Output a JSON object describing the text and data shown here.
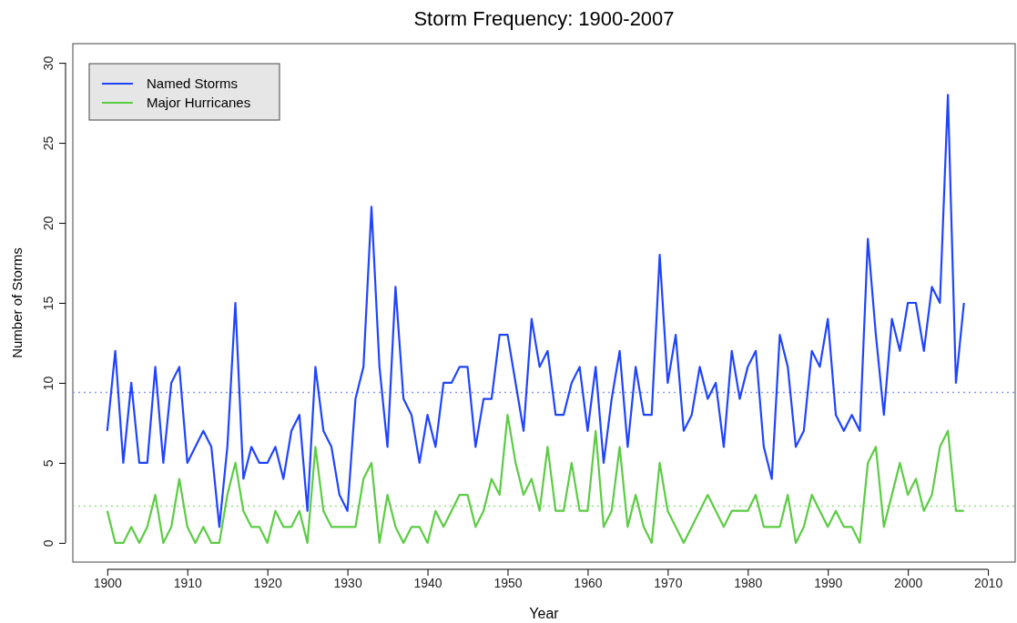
{
  "chart_data": {
    "type": "line",
    "title": "Storm Frequency: 1900-2007",
    "xlabel": "Year",
    "ylabel": "Number of Storms",
    "x": [
      1900,
      1901,
      1902,
      1903,
      1904,
      1905,
      1906,
      1907,
      1908,
      1909,
      1910,
      1911,
      1912,
      1913,
      1914,
      1915,
      1916,
      1917,
      1918,
      1919,
      1920,
      1921,
      1922,
      1923,
      1924,
      1925,
      1926,
      1927,
      1928,
      1929,
      1930,
      1931,
      1932,
      1933,
      1934,
      1935,
      1936,
      1937,
      1938,
      1939,
      1940,
      1941,
      1942,
      1943,
      1944,
      1945,
      1946,
      1947,
      1948,
      1949,
      1950,
      1951,
      1952,
      1953,
      1954,
      1955,
      1956,
      1957,
      1958,
      1959,
      1960,
      1961,
      1962,
      1963,
      1964,
      1965,
      1966,
      1967,
      1968,
      1969,
      1970,
      1971,
      1972,
      1973,
      1974,
      1975,
      1976,
      1977,
      1978,
      1979,
      1980,
      1981,
      1982,
      1983,
      1984,
      1985,
      1986,
      1987,
      1988,
      1989,
      1990,
      1991,
      1992,
      1993,
      1994,
      1995,
      1996,
      1997,
      1998,
      1999,
      2000,
      2001,
      2002,
      2003,
      2004,
      2005,
      2006,
      2007
    ],
    "series": [
      {
        "name": "Named Storms",
        "color": "#1f45fc",
        "values": [
          7,
          12,
          5,
          10,
          5,
          5,
          11,
          5,
          10,
          11,
          5,
          6,
          7,
          6,
          1,
          6,
          15,
          4,
          6,
          5,
          5,
          6,
          4,
          7,
          8,
          2,
          11,
          7,
          6,
          3,
          2,
          9,
          11,
          21,
          11,
          6,
          16,
          9,
          8,
          5,
          8,
          6,
          10,
          10,
          11,
          11,
          6,
          9,
          9,
          13,
          13,
          10,
          7,
          14,
          11,
          12,
          8,
          8,
          10,
          11,
          7,
          11,
          5,
          9,
          12,
          6,
          11,
          8,
          8,
          18,
          10,
          13,
          7,
          8,
          11,
          9,
          10,
          6,
          12,
          9,
          11,
          12,
          6,
          4,
          13,
          11,
          6,
          7,
          12,
          11,
          14,
          8,
          7,
          8,
          7,
          19,
          13,
          8,
          14,
          12,
          15,
          15,
          12,
          16,
          15,
          28,
          10,
          15
        ]
      },
      {
        "name": "Major Hurricanes",
        "color": "#5ccc44",
        "values": [
          2,
          0,
          0,
          1,
          0,
          1,
          3,
          0,
          1,
          4,
          1,
          0,
          1,
          0,
          0,
          3,
          5,
          2,
          1,
          1,
          0,
          2,
          1,
          1,
          2,
          0,
          6,
          2,
          1,
          1,
          1,
          1,
          4,
          5,
          0,
          3,
          1,
          0,
          1,
          1,
          0,
          2,
          1,
          2,
          3,
          3,
          1,
          2,
          4,
          3,
          8,
          5,
          3,
          4,
          2,
          6,
          2,
          2,
          5,
          2,
          2,
          7,
          1,
          2,
          6,
          1,
          3,
          1,
          0,
          5,
          2,
          1,
          0,
          1,
          2,
          3,
          2,
          1,
          2,
          2,
          2,
          3,
          1,
          1,
          1,
          3,
          0,
          1,
          3,
          2,
          1,
          2,
          1,
          1,
          0,
          5,
          6,
          1,
          3,
          5,
          3,
          4,
          2,
          3,
          6,
          7,
          2,
          2
        ]
      }
    ],
    "xlim": [
      1895.7,
      2013.4
    ],
    "xticks": [
      1900,
      1910,
      1920,
      1930,
      1940,
      1950,
      1960,
      1970,
      1980,
      1990,
      2000,
      2010
    ],
    "ylim": [
      -1.2,
      31.2
    ],
    "yticks": [
      0,
      5,
      10,
      15,
      20,
      25,
      30
    ],
    "ref_lines": [
      {
        "axis": "y",
        "value": 9.4,
        "color": "#8899ff",
        "line_style": "dotted"
      },
      {
        "axis": "y",
        "value": 2.3,
        "color": "#99dd88",
        "line_style": "dotted"
      }
    ],
    "legend": "top left",
    "grid": false,
    "line_style": "solid",
    "marker": "none"
  }
}
